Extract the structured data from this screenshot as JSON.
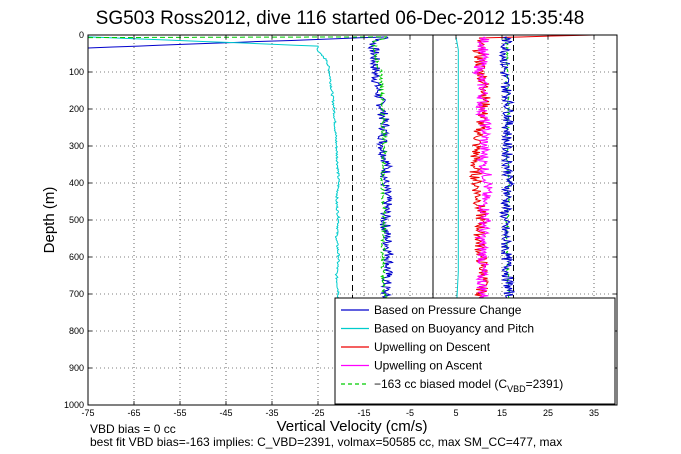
{
  "chart_data": {
    "type": "line",
    "title": "SG503 Ross2012, dive 116 started 06-Dec-2012 15:35:48",
    "xlabel": "Vertical Velocity (cm/s)",
    "ylabel": "Depth (m)",
    "xlim": [
      -75,
      40
    ],
    "ylim": [
      0,
      1000
    ],
    "y_reversed": true,
    "grid": "dotted",
    "xticks": [
      -75,
      -65,
      -55,
      -45,
      -35,
      -25,
      -15,
      -5,
      5,
      15,
      25,
      35
    ],
    "yticks": [
      0,
      100,
      200,
      300,
      400,
      500,
      600,
      700,
      800,
      900,
      1000
    ],
    "legend_position": "bottom-right",
    "series": [
      {
        "name": "Based on Pressure Change",
        "color": "#0000cc",
        "style": "solid",
        "noise": 1.2,
        "x": [
          -75,
          -10,
          -13,
          -12.5,
          -12,
          -11,
          -10.5,
          -11,
          -10,
          -10.5,
          -10,
          -10.5,
          -10,
          -9.5,
          -10,
          -10.5
        ],
        "y": [
          35,
          5,
          20,
          100,
          150,
          200,
          250,
          300,
          350,
          400,
          450,
          500,
          550,
          600,
          650,
          710
        ]
      },
      {
        "name": "Based on Buoyancy and Pitch",
        "color": "#00cccc",
        "style": "solid",
        "noise": 0.25,
        "x": [
          -75,
          -25,
          -25,
          -23,
          -22.5,
          -21.5,
          -21,
          -20.5,
          -21,
          -20.5,
          -21,
          -20.5,
          -21,
          -20.5,
          -21,
          -20.5
        ],
        "y": [
          5,
          30,
          45,
          70,
          100,
          200,
          300,
          400,
          450,
          500,
          550,
          600,
          650,
          700,
          750,
          760
        ]
      },
      {
        "name": "Upwelling on Descent",
        "color": "#ee0000",
        "style": "solid",
        "noise": 1.3,
        "x": [
          35,
          10,
          10,
          10.5,
          11.5,
          11,
          9.5,
          9,
          9.5,
          10,
          10.5,
          10,
          10.5,
          11,
          10.5,
          10
        ],
        "y": [
          0,
          8,
          50,
          100,
          150,
          200,
          300,
          350,
          400,
          450,
          500,
          550,
          600,
          650,
          700,
          710
        ]
      },
      {
        "name": "Upwelling on Ascent",
        "color": "#ff00ff",
        "style": "solid",
        "noise": 1.3,
        "x": [
          11,
          11,
          10,
          11,
          10.5,
          11.5,
          11,
          11,
          12,
          11,
          11.5,
          10.5,
          11,
          10.5,
          11
        ],
        "y": [
          5,
          50,
          100,
          150,
          200,
          250,
          300,
          350,
          400,
          450,
          500,
          550,
          600,
          650,
          710
        ]
      },
      {
        "name": "−163 cc biased model (C",
        "name_sub": "VBD",
        "name_tail": "=2391)",
        "color": "#00cc00",
        "style": "dashed",
        "noise": 0.5,
        "x": [
          -75,
          -10,
          -13,
          -11.5,
          -11,
          -10.5,
          -11,
          -10.5,
          -11,
          -10.5,
          -10.5
        ],
        "y": [
          7,
          5,
          20,
          100,
          200,
          300,
          400,
          500,
          600,
          700,
          710
        ]
      },
      {
        "name": "",
        "color": "#00cc00",
        "style": "dashed",
        "noise": 0.3,
        "x": [
          16,
          16,
          16.5,
          16,
          16.5,
          16,
          16.5
        ],
        "y": [
          5,
          100,
          200,
          300,
          400,
          550,
          710
        ]
      },
      {
        "name": "",
        "color": "#00cccc",
        "style": "solid",
        "noise": 0,
        "x": [
          5,
          5.5,
          5.5,
          5
        ],
        "y": [
          5,
          40,
          640,
          760
        ]
      },
      {
        "name": "",
        "color": "#0000cc",
        "style": "solid",
        "noise": 1.2,
        "x": [
          16,
          15.5,
          16.5,
          16,
          16.5,
          15.5,
          16,
          16.5,
          16
        ],
        "y": [
          5,
          100,
          200,
          300,
          400,
          500,
          600,
          700,
          710
        ]
      }
    ],
    "reference_lines": [
      {
        "x": 0,
        "style": "solid",
        "color": "#000000"
      },
      {
        "x": -17.5,
        "style": "dashed",
        "color": "#000000"
      },
      {
        "x": 17.5,
        "style": "dashed",
        "color": "#000000"
      }
    ]
  },
  "footer": {
    "bias_note": "VBD bias = 0 cc",
    "fit_note": "best fit VBD bias=-163 implies: C_VBD=2391, volmax=50585 cc, max SM_CC=477, max"
  }
}
